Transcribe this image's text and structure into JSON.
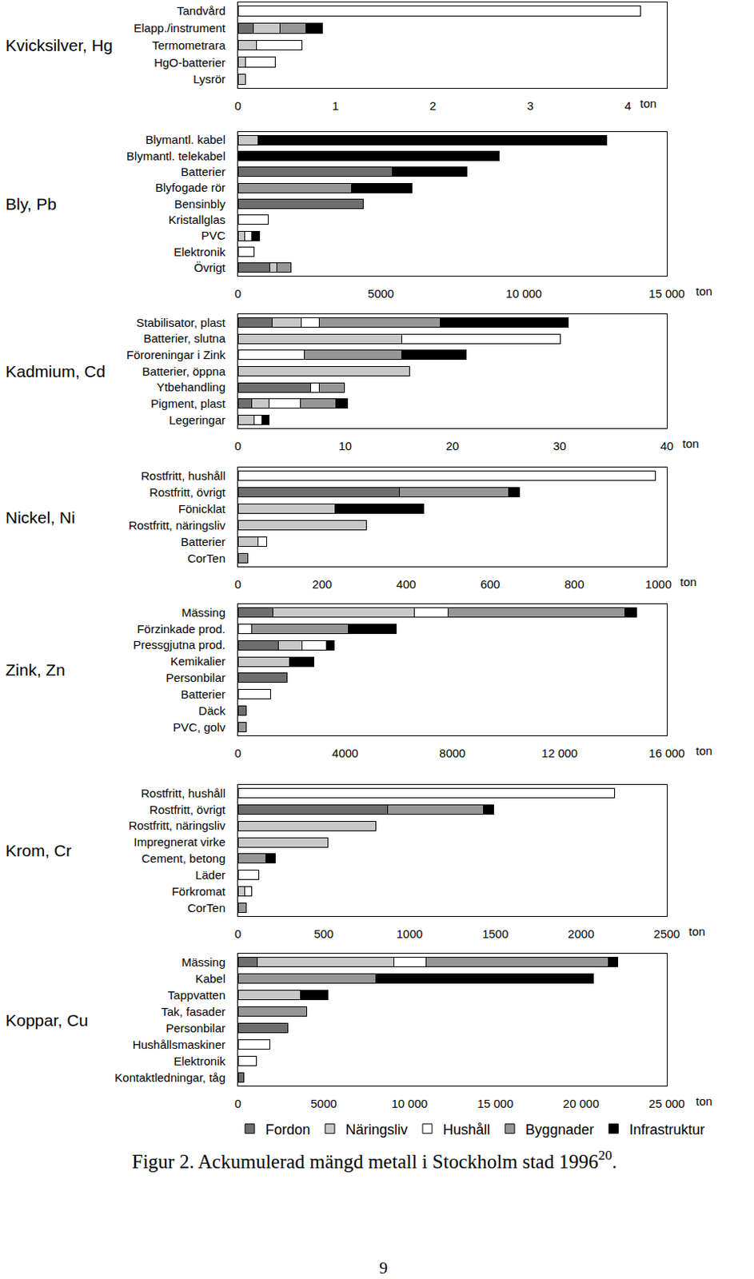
{
  "chart_data": [
    {
      "type": "bar",
      "title": "Kvicksilver, Hg",
      "orientation": "horizontal",
      "stacked": true,
      "grid": false,
      "xlabel": "ton",
      "categories": [
        "Tandvård",
        "Elapp./instrument",
        "Termometrara",
        "HgO-batterier",
        "Lysrör"
      ],
      "xlim": [
        0,
        4.4
      ],
      "xticks": [
        0,
        1,
        2,
        3,
        4
      ],
      "series": [
        {
          "name": "Fordon",
          "color": "#6e6e6e",
          "values": [
            null,
            0.16,
            null,
            null,
            null
          ]
        },
        {
          "name": "Näringsliv",
          "color": "#c8c8c8",
          "values": [
            null,
            0.27,
            0.19,
            0.08,
            0.08
          ]
        },
        {
          "name": "Hushåll",
          "color": "#ffffff",
          "values": [
            4.13,
            null,
            0.47,
            0.3,
            null
          ]
        },
        {
          "name": "Byggnader",
          "color": "#969696",
          "values": [
            null,
            0.27,
            null,
            null,
            null
          ]
        },
        {
          "name": "Infrastruktur",
          "color": "#000000",
          "values": [
            null,
            0.17,
            null,
            null,
            null
          ]
        }
      ]
    },
    {
      "type": "bar",
      "title": "Bly, Pb",
      "orientation": "horizontal",
      "stacked": true,
      "grid": false,
      "xlabel": "ton",
      "categories": [
        "Blymantl. kabel",
        "Blymantl. telekabel",
        "Batterier",
        "Blyfogade rör",
        "Bensinbly",
        "Kristallglas",
        "PVC",
        "Elektronik",
        "Övrigt"
      ],
      "xlim": [
        0,
        15000
      ],
      "xticks": [
        0,
        5000,
        {
          "value": 10000,
          "label": "10 000"
        },
        {
          "value": 15000,
          "label": "15 000"
        }
      ],
      "series": [
        {
          "name": "Fordon",
          "color": "#6e6e6e",
          "values": [
            null,
            null,
            5400,
            null,
            4370,
            null,
            null,
            null,
            1110
          ]
        },
        {
          "name": "Näringsliv",
          "color": "#c8c8c8",
          "values": [
            690,
            null,
            null,
            null,
            null,
            null,
            230,
            null,
            260
          ]
        },
        {
          "name": "Hushåll",
          "color": "#ffffff",
          "values": [
            null,
            null,
            null,
            null,
            null,
            1060,
            260,
            570,
            null
          ]
        },
        {
          "name": "Byggnader",
          "color": "#969696",
          "values": [
            null,
            null,
            null,
            3970,
            null,
            null,
            null,
            null,
            490
          ]
        },
        {
          "name": "Infrastruktur",
          "color": "#000000",
          "values": [
            12200,
            9140,
            2600,
            2110,
            null,
            null,
            260,
            null,
            null
          ]
        }
      ]
    },
    {
      "type": "bar",
      "title": "Kadmium, Cd",
      "orientation": "horizontal",
      "stacked": true,
      "grid": false,
      "xlabel": "ton",
      "categories": [
        "Stabilisator, plast",
        "Batterier, slutna",
        "Föroreningar i Zink",
        "Batterier, öppna",
        "Ytbehandling",
        "Pigment, plast",
        "Legeringar"
      ],
      "xlim": [
        0,
        40
      ],
      "xticks": [
        0,
        10,
        20,
        30,
        40
      ],
      "series": [
        {
          "name": "Fordon",
          "color": "#6e6e6e",
          "values": [
            3.2,
            null,
            null,
            null,
            6.8,
            1.3,
            null
          ]
        },
        {
          "name": "Näringsliv",
          "color": "#c8c8c8",
          "values": [
            2.7,
            15.3,
            null,
            16.0,
            null,
            1.6,
            1.5
          ]
        },
        {
          "name": "Hushåll",
          "color": "#ffffff",
          "values": [
            1.7,
            14.8,
            6.2,
            null,
            0.8,
            2.9,
            0.7
          ]
        },
        {
          "name": "Byggnader",
          "color": "#969696",
          "values": [
            11.3,
            null,
            9.1,
            null,
            2.3,
            3.3,
            null
          ]
        },
        {
          "name": "Infrastruktur",
          "color": "#000000",
          "values": [
            11.9,
            null,
            6.0,
            null,
            null,
            1.1,
            0.7
          ]
        }
      ]
    },
    {
      "type": "bar",
      "title": "Nickel, Ni",
      "orientation": "horizontal",
      "stacked": true,
      "grid": false,
      "xlabel": "ton",
      "categories": [
        "Rostfritt, hushåll",
        "Rostfritt, övrigt",
        "Fönicklat",
        "Rostfritt, näringsliv",
        "Batterier",
        "CorTen"
      ],
      "xlim": [
        0,
        1020
      ],
      "xticks": [
        0,
        200,
        400,
        600,
        800,
        1000
      ],
      "series": [
        {
          "name": "Fordon",
          "color": "#6e6e6e",
          "values": [
            null,
            383,
            null,
            null,
            null,
            null
          ]
        },
        {
          "name": "Näringsliv",
          "color": "#c8c8c8",
          "values": [
            null,
            null,
            230,
            306,
            48,
            null
          ]
        },
        {
          "name": "Hushåll",
          "color": "#ffffff",
          "values": [
            992,
            null,
            null,
            null,
            21,
            null
          ]
        },
        {
          "name": "Byggnader",
          "color": "#969696",
          "values": [
            null,
            261,
            null,
            null,
            null,
            23
          ]
        },
        {
          "name": "Infrastruktur",
          "color": "#000000",
          "values": [
            null,
            25,
            211,
            null,
            null,
            null
          ]
        }
      ]
    },
    {
      "type": "bar",
      "title": "Zink, Zn",
      "orientation": "horizontal",
      "stacked": true,
      "grid": false,
      "xlabel": "ton",
      "categories": [
        "Mässing",
        "Förzinkade prod.",
        "Pressgjutna prod.",
        "Kemikalier",
        "Personbilar",
        "Batterier",
        "Däck",
        "PVC, golv"
      ],
      "xlim": [
        0,
        16000
      ],
      "xticks": [
        0,
        4000,
        8000,
        {
          "value": 12000,
          "label": "12 000"
        },
        {
          "value": 16000,
          "label": "16 000"
        }
      ],
      "series": [
        {
          "name": "Fordon",
          "color": "#6e6e6e",
          "values": [
            1310,
            null,
            1520,
            null,
            1830,
            null,
            300,
            null
          ]
        },
        {
          "name": "Näringsliv",
          "color": "#c8c8c8",
          "values": [
            5260,
            null,
            880,
            1920,
            null,
            null,
            null,
            null
          ]
        },
        {
          "name": "Hushåll",
          "color": "#ffffff",
          "values": [
            1280,
            520,
            910,
            null,
            null,
            1220,
            null,
            null
          ]
        },
        {
          "name": "Byggnader",
          "color": "#969696",
          "values": [
            6570,
            3590,
            null,
            null,
            null,
            null,
            null,
            300
          ]
        },
        {
          "name": "Infrastruktur",
          "color": "#000000",
          "values": [
            460,
            1790,
            270,
            910,
            null,
            null,
            null,
            null
          ]
        }
      ]
    },
    {
      "type": "bar",
      "title": "Krom, Cr",
      "orientation": "horizontal",
      "stacked": true,
      "grid": false,
      "xlabel": "ton",
      "categories": [
        "Rostfritt, hushåll",
        "Rostfritt, övrigt",
        "Rostfritt, näringsliv",
        "Impregnerat virke",
        "Cement, betong",
        "Läder",
        "Förkromat",
        "CorTen"
      ],
      "xlim": [
        0,
        2500
      ],
      "xticks": [
        0,
        500,
        1000,
        1500,
        2000,
        2500
      ],
      "series": [
        {
          "name": "Fordon",
          "color": "#6e6e6e",
          "values": [
            null,
            873,
            null,
            null,
            null,
            null,
            null,
            null
          ]
        },
        {
          "name": "Näringsliv",
          "color": "#c8c8c8",
          "values": [
            null,
            null,
            802,
            522,
            null,
            null,
            38,
            null
          ]
        },
        {
          "name": "Hushåll",
          "color": "#ffffff",
          "values": [
            2196,
            null,
            null,
            null,
            null,
            123,
            43,
            null
          ]
        },
        {
          "name": "Byggnader",
          "color": "#969696",
          "values": [
            null,
            560,
            null,
            null,
            161,
            null,
            null,
            47
          ]
        },
        {
          "name": "Infrastruktur",
          "color": "#000000",
          "values": [
            null,
            57,
            null,
            null,
            57,
            null,
            null,
            null
          ]
        }
      ]
    },
    {
      "type": "bar",
      "title": "Koppar, Cu",
      "orientation": "horizontal",
      "stacked": true,
      "grid": false,
      "xlabel": "ton",
      "legend": "bottom",
      "categories": [
        "Mässing",
        "Kabel",
        "Tappvatten",
        "Tak, fasader",
        "Personbilar",
        "Hushållsmaskiner",
        "Elektronik",
        "Kontaktledningar, tåg"
      ],
      "xlim": [
        0,
        25000
      ],
      "xticks": [
        0,
        5000,
        {
          "value": 10000,
          "label": "10 000"
        },
        {
          "value": 15000,
          "label": "15 000"
        },
        {
          "value": 20000,
          "label": "20 000"
        },
        {
          "value": 25000,
          "label": "25 000"
        }
      ],
      "series": [
        {
          "name": "Fordon",
          "color": "#6e6e6e",
          "values": [
            1140,
            null,
            null,
            null,
            2890,
            null,
            null,
            330
          ]
        },
        {
          "name": "Näringsliv",
          "color": "#c8c8c8",
          "values": [
            7970,
            null,
            3650,
            null,
            null,
            null,
            null,
            null
          ]
        },
        {
          "name": "Hushåll",
          "color": "#ffffff",
          "values": [
            1850,
            null,
            null,
            null,
            null,
            1850,
            1090,
            null
          ]
        },
        {
          "name": "Byggnader",
          "color": "#969696",
          "values": [
            10630,
            8020,
            null,
            3990,
            null,
            null,
            null,
            null
          ]
        },
        {
          "name": "Infrastruktur",
          "color": "#000000",
          "values": [
            570,
            12710,
            1570,
            null,
            null,
            null,
            null,
            null
          ]
        }
      ]
    }
  ],
  "caption": {
    "text": "Figur 2. Ackumulerad mängd metall i Stockholm stad 1996",
    "superscript": "20",
    "end": "."
  },
  "page_number": "9"
}
